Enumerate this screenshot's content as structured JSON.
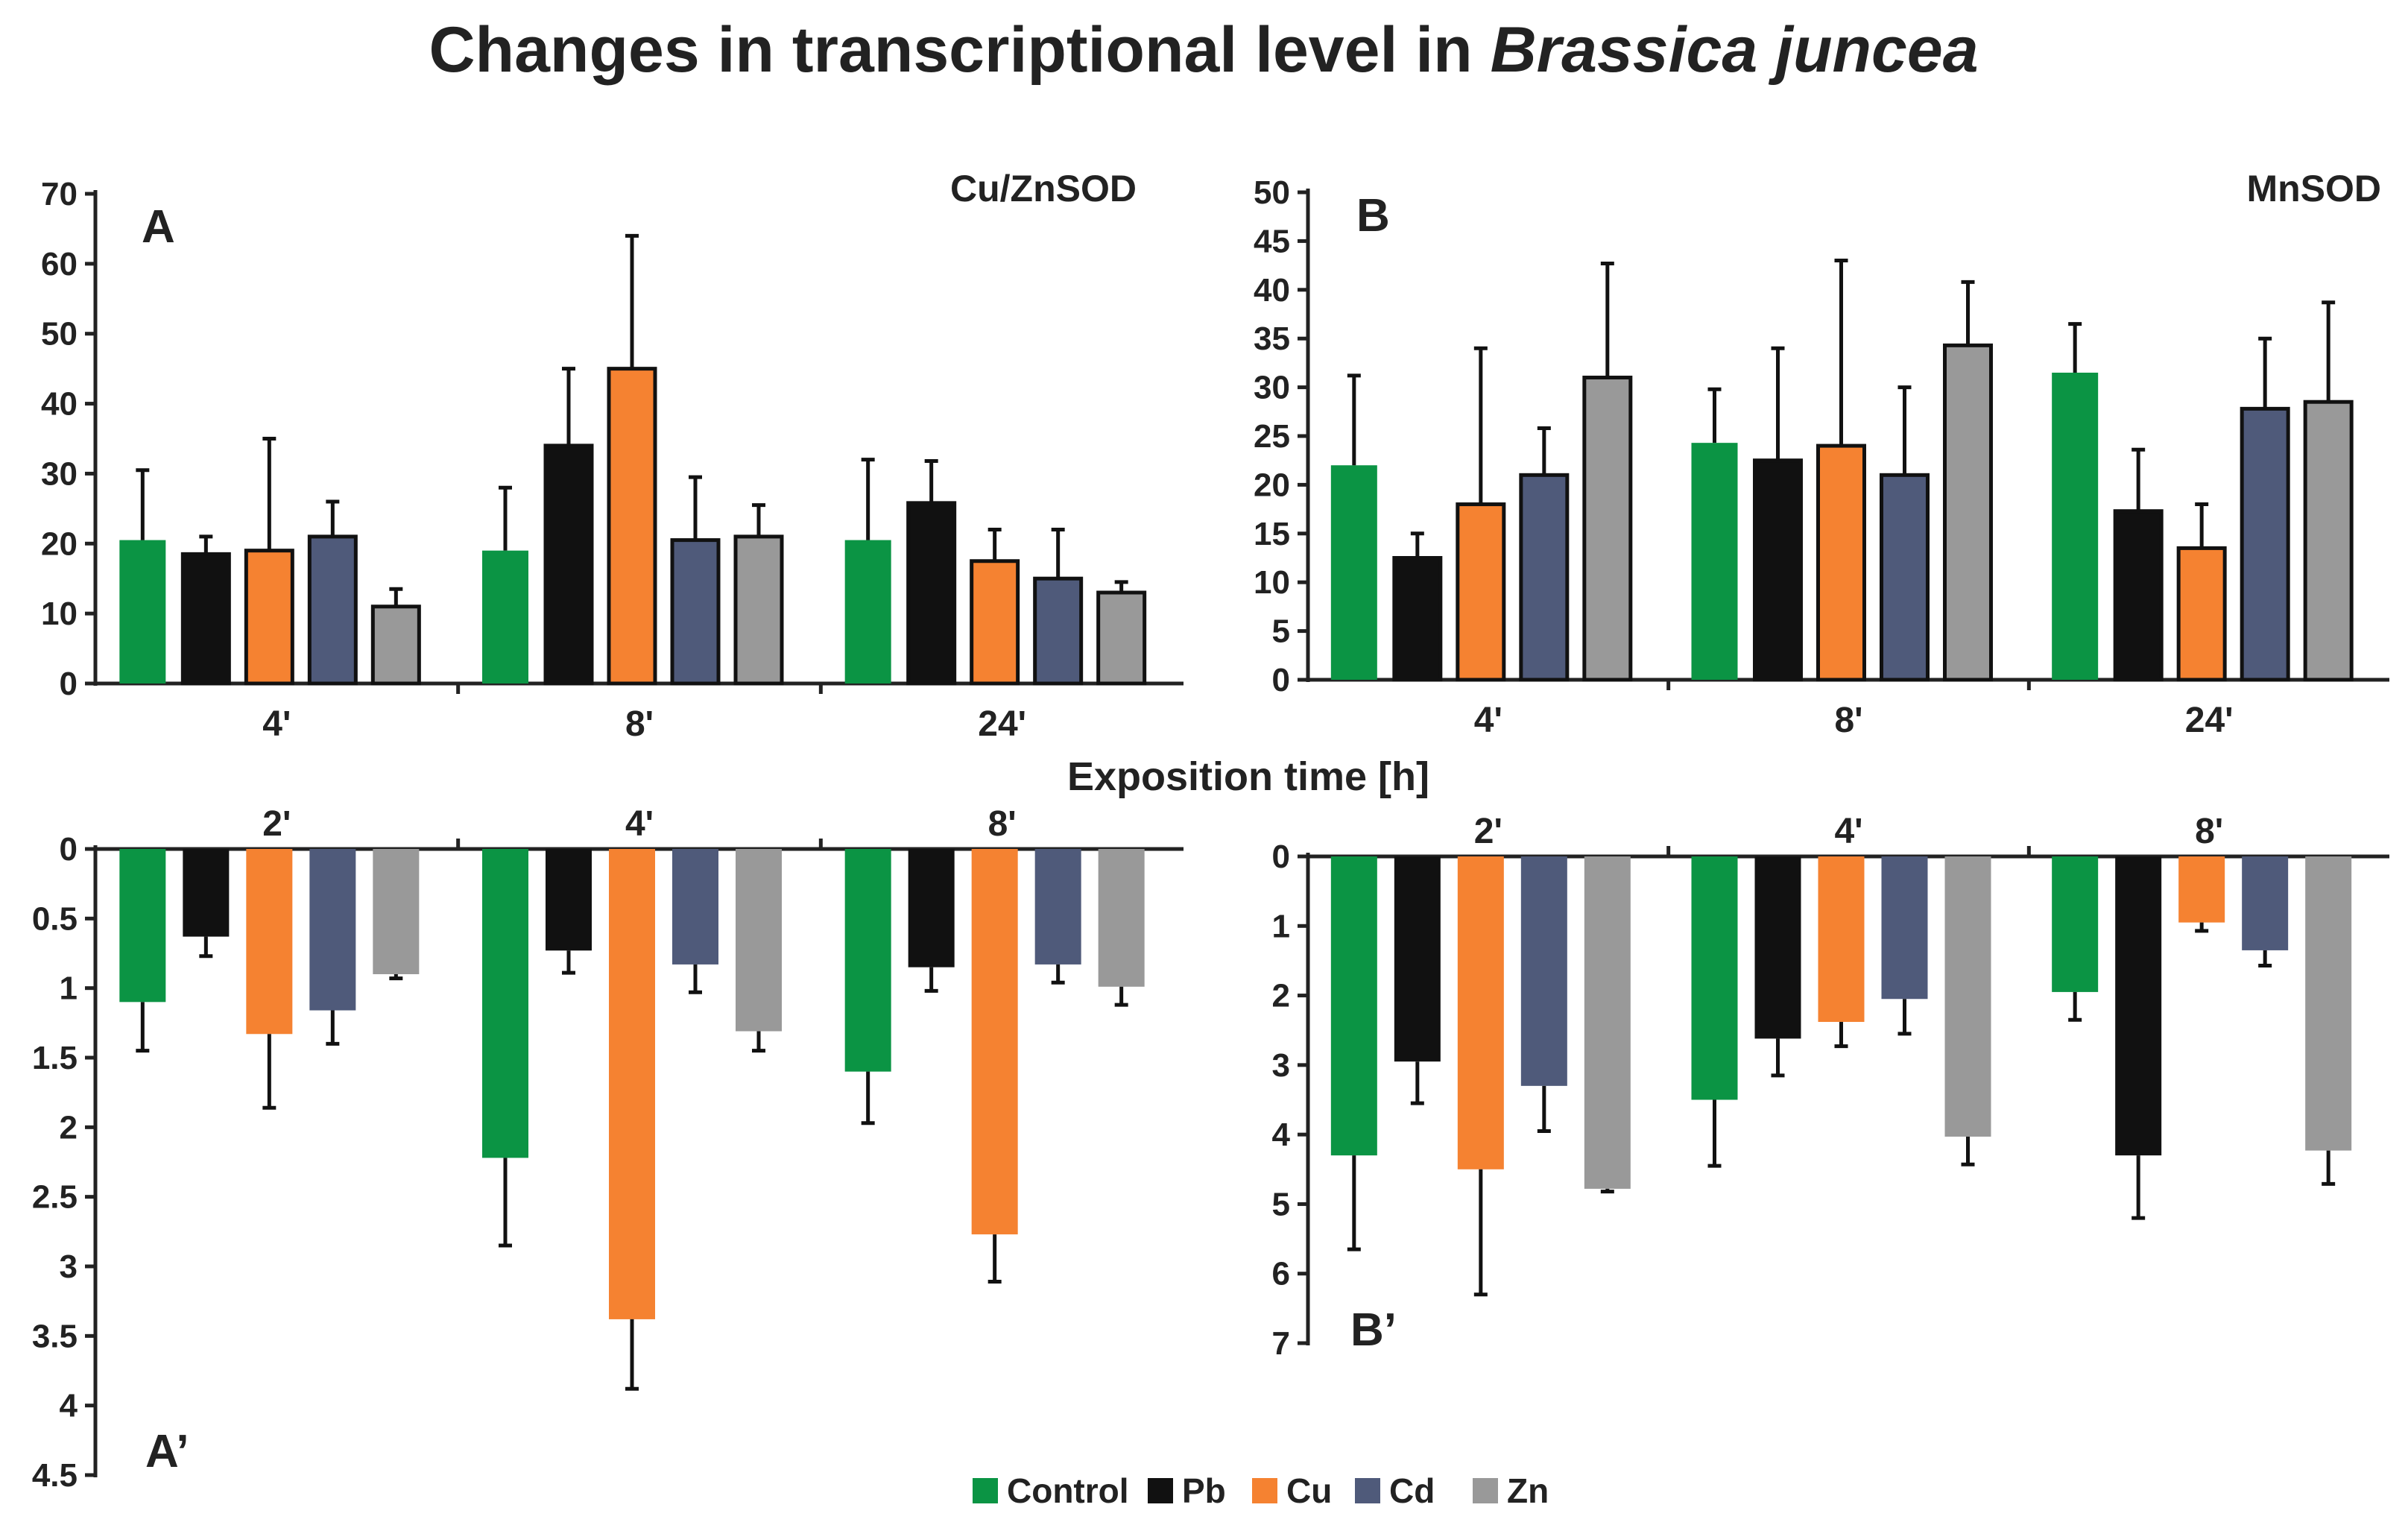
{
  "title": {
    "prefix": "Changes in transcriptional level in ",
    "species": "Brassica juncea"
  },
  "x_axis_title": "Exposition time [h]",
  "legend": [
    {
      "label": "Control",
      "color": "#0b9444"
    },
    {
      "label": "Pb",
      "color": "#111111"
    },
    {
      "label": "Cu",
      "color": "#f58231"
    },
    {
      "label": "Cd",
      "color": "#4f5a7a"
    },
    {
      "label": "Zn",
      "color": "#999999"
    }
  ],
  "chart_data": [
    {
      "panel": "A",
      "name": "Cu/ZnSOD",
      "type": "bar",
      "orientation": "up",
      "categories": [
        "4'",
        "8'",
        "24'"
      ],
      "ylim": [
        0,
        70
      ],
      "yticks": [
        0,
        10,
        20,
        30,
        40,
        50,
        60,
        70
      ],
      "ytick_labels": [
        "0",
        "10",
        "20",
        "30",
        "40",
        "50",
        "60",
        "70"
      ],
      "series": [
        {
          "name": "Control",
          "values": [
            20.5,
            19,
            20.5
          ],
          "errors": [
            10,
            9,
            11.5
          ]
        },
        {
          "name": "Pb",
          "values": [
            18.5,
            34,
            25.8
          ],
          "errors": [
            2.5,
            11,
            6
          ]
        },
        {
          "name": "Cu",
          "values": [
            19,
            45,
            17.5
          ],
          "errors": [
            16,
            19,
            4.5
          ]
        },
        {
          "name": "Cd",
          "values": [
            21,
            20.5,
            15
          ],
          "errors": [
            5,
            9,
            7
          ]
        },
        {
          "name": "Zn",
          "values": [
            11,
            21,
            13
          ],
          "errors": [
            2.5,
            4.5,
            1.5
          ]
        }
      ]
    },
    {
      "panel": "B",
      "name": "MnSOD",
      "type": "bar",
      "orientation": "up",
      "categories": [
        "4'",
        "8'",
        "24'"
      ],
      "ylim": [
        0,
        50
      ],
      "yticks": [
        0,
        5,
        10,
        15,
        20,
        25,
        30,
        35,
        40,
        45,
        50
      ],
      "ytick_labels": [
        "0",
        "5",
        "10",
        "15",
        "20",
        "25",
        "30",
        "35",
        "40",
        "45",
        "50"
      ],
      "series": [
        {
          "name": "Control",
          "values": [
            22,
            24.3,
            31.5
          ],
          "errors": [
            9.2,
            5.5,
            5
          ]
        },
        {
          "name": "Pb",
          "values": [
            12.5,
            22.5,
            17.3
          ],
          "errors": [
            2.5,
            11.5,
            6.3
          ]
        },
        {
          "name": "Cu",
          "values": [
            18,
            24,
            13.5
          ],
          "errors": [
            16,
            19,
            4.5
          ]
        },
        {
          "name": "Cd",
          "values": [
            21,
            21,
            27.8
          ],
          "errors": [
            4.8,
            9,
            7.2
          ]
        },
        {
          "name": "Zn",
          "values": [
            31,
            34.3,
            28.5
          ],
          "errors": [
            11.7,
            6.5,
            10.2
          ]
        }
      ]
    },
    {
      "panel": "A’",
      "name": "",
      "type": "bar",
      "orientation": "down",
      "categories": [
        "2'",
        "4'",
        "8'"
      ],
      "ylim": [
        0,
        4.5
      ],
      "yticks": [
        0,
        0.5,
        1,
        1.5,
        2,
        2.5,
        3,
        3.5,
        4,
        4.5
      ],
      "ytick_labels": [
        "0",
        "0.5",
        "1",
        "1.5",
        "2",
        "2.5",
        "3",
        "3.5",
        "4",
        "4.5"
      ],
      "series": [
        {
          "name": "Control",
          "values": [
            1.1,
            2.22,
            1.6
          ],
          "errors": [
            0.35,
            0.63,
            0.37
          ]
        },
        {
          "name": "Pb",
          "values": [
            0.63,
            0.73,
            0.85
          ],
          "errors": [
            0.14,
            0.16,
            0.17
          ]
        },
        {
          "name": "Cu",
          "values": [
            1.33,
            3.38,
            2.77
          ],
          "errors": [
            0.53,
            0.5,
            0.34
          ]
        },
        {
          "name": "Cd",
          "values": [
            1.16,
            0.83,
            0.83
          ],
          "errors": [
            0.24,
            0.2,
            0.13
          ]
        },
        {
          "name": "Zn",
          "values": [
            0.9,
            1.31,
            0.99
          ],
          "errors": [
            0.03,
            0.14,
            0.13
          ]
        }
      ]
    },
    {
      "panel": "B’",
      "name": "",
      "type": "bar",
      "orientation": "down",
      "categories": [
        "2'",
        "4'",
        "8'"
      ],
      "ylim": [
        0,
        7
      ],
      "yticks": [
        0,
        1,
        2,
        3,
        4,
        5,
        6,
        7
      ],
      "ytick_labels": [
        "0",
        "1",
        "2",
        "3",
        "4",
        "5",
        "6",
        "7"
      ],
      "series": [
        {
          "name": "Control",
          "values": [
            4.3,
            3.5,
            1.95
          ],
          "errors": [
            1.35,
            0.95,
            0.4
          ]
        },
        {
          "name": "Pb",
          "values": [
            2.95,
            2.62,
            4.3
          ],
          "errors": [
            0.6,
            0.53,
            0.9
          ]
        },
        {
          "name": "Cu",
          "values": [
            4.5,
            2.38,
            0.95
          ],
          "errors": [
            1.8,
            0.35,
            0.12
          ]
        },
        {
          "name": "Cd",
          "values": [
            3.3,
            2.05,
            1.35
          ],
          "errors": [
            0.65,
            0.5,
            0.22
          ]
        },
        {
          "name": "Zn",
          "values": [
            4.78,
            4.03,
            4.23
          ],
          "errors": [
            0.04,
            0.4,
            0.48
          ]
        }
      ]
    }
  ]
}
